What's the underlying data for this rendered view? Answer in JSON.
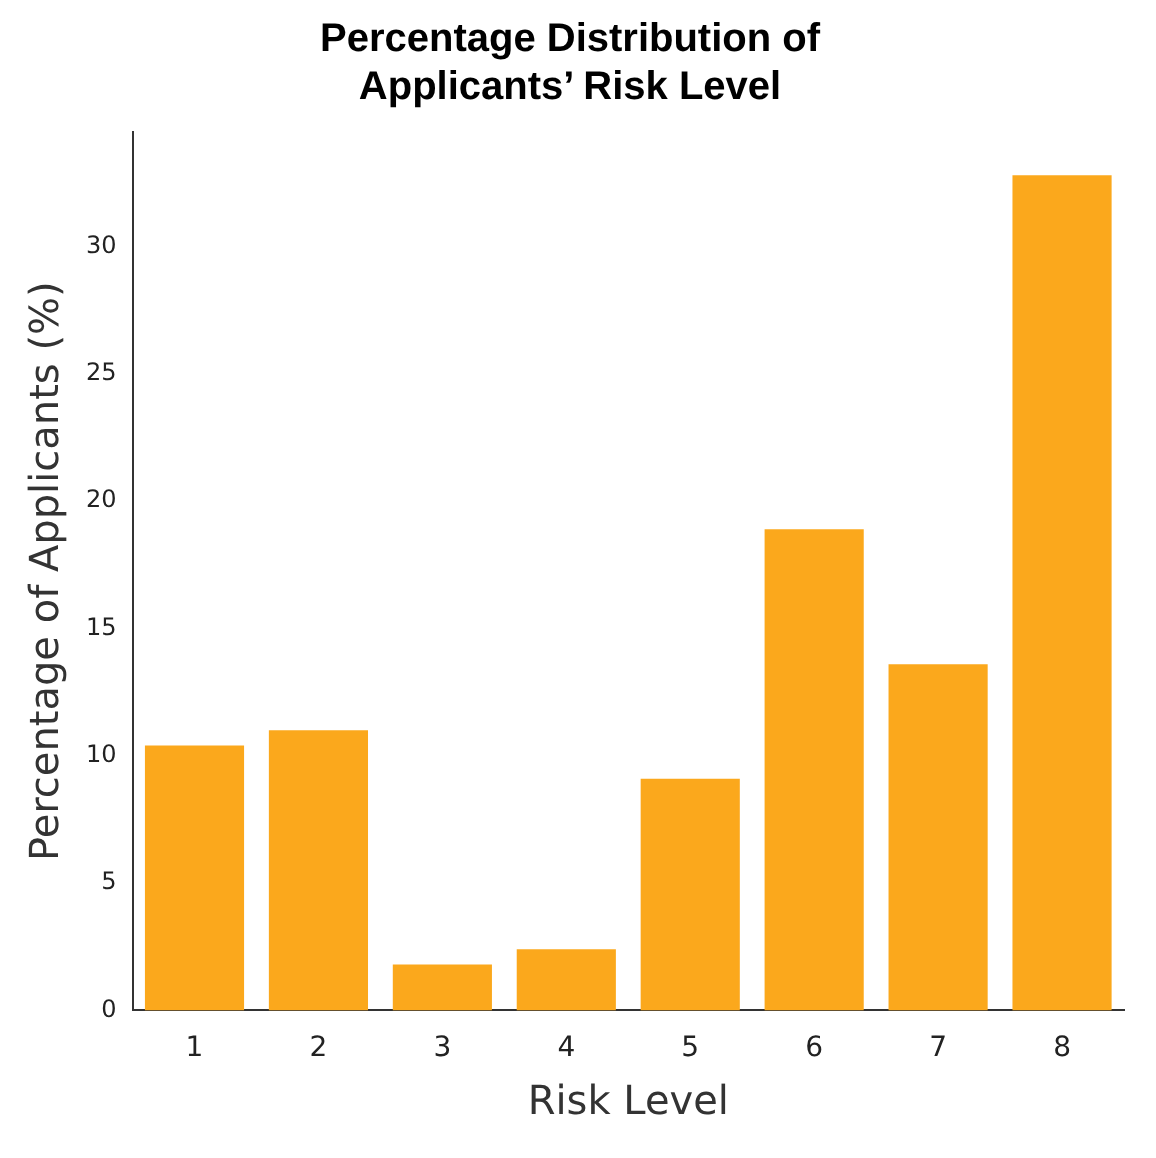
{
  "chart_data": {
    "type": "bar",
    "title": "Percentage Distribution of\nApplicants’ Risk Level",
    "xlabel": "Risk Level",
    "ylabel": "Percentage of Applicants (%)",
    "categories": [
      "1",
      "2",
      "3",
      "4",
      "5",
      "6",
      "7",
      "8"
    ],
    "values": [
      10.4,
      11.0,
      1.8,
      2.4,
      9.1,
      18.9,
      13.6,
      32.8
    ],
    "color": "#fba81c",
    "ylim": [
      0,
      34.5
    ],
    "yticks": [
      0,
      5,
      10,
      15,
      20,
      25,
      30
    ],
    "grid": false,
    "legend": false
  }
}
